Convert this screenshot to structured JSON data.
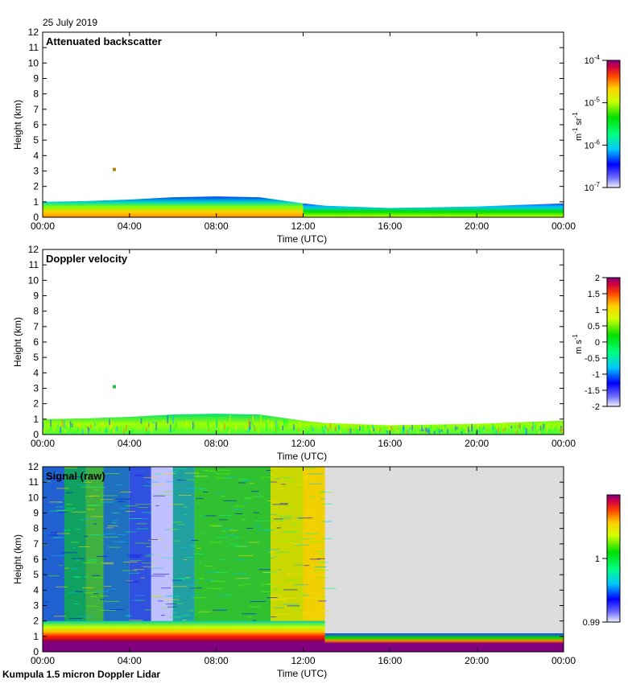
{
  "page": {
    "date": "25 July 2019",
    "footer": "Kumpula 1.5 micron Doppler Lidar"
  },
  "chart_data": [
    {
      "type": "heatmap",
      "title": "Attenuated backscatter",
      "xlabel": "Time (UTC)",
      "ylabel": "Height (km)",
      "xlim": [
        0,
        24
      ],
      "ylim": [
        0,
        12
      ],
      "x_ticks": [
        "00:00",
        "04:00",
        "08:00",
        "12:00",
        "16:00",
        "20:00",
        "00:00"
      ],
      "y_ticks": [
        "0",
        "1",
        "2",
        "3",
        "4",
        "5",
        "6",
        "7",
        "8",
        "9",
        "10",
        "11",
        "12"
      ],
      "colorbar": {
        "scale": "log",
        "ticks": [
          {
            "base": "10",
            "exp": "-4"
          },
          {
            "base": "10",
            "exp": "-5"
          },
          {
            "base": "10",
            "exp": "-6"
          },
          {
            "base": "10",
            "exp": "-7"
          }
        ],
        "units_base": "m",
        "units_exp": "-1",
        "units_base2": " sr",
        "units_exp2": "-1",
        "range": [
          1e-07,
          0.0001
        ]
      },
      "layer_top_km": [
        {
          "t": 0,
          "h": 1.0
        },
        {
          "t": 2,
          "h": 1.05
        },
        {
          "t": 4,
          "h": 1.15
        },
        {
          "t": 6,
          "h": 1.3
        },
        {
          "t": 8,
          "h": 1.35
        },
        {
          "t": 10,
          "h": 1.3
        },
        {
          "t": 12,
          "h": 0.9
        },
        {
          "t": 13,
          "h": 0.75
        },
        {
          "t": 16,
          "h": 0.6
        },
        {
          "t": 20,
          "h": 0.7
        },
        {
          "t": 24,
          "h": 0.9
        }
      ],
      "isolated_feature": {
        "t": 3.3,
        "h": 3.1
      }
    },
    {
      "type": "heatmap",
      "title": "Doppler velocity",
      "xlabel": "Time (UTC)",
      "ylabel": "Height (km)",
      "xlim": [
        0,
        24
      ],
      "ylim": [
        0,
        12
      ],
      "x_ticks": [
        "00:00",
        "04:00",
        "08:00",
        "12:00",
        "16:00",
        "20:00",
        "00:00"
      ],
      "y_ticks": [
        "0",
        "1",
        "2",
        "3",
        "4",
        "5",
        "6",
        "7",
        "8",
        "9",
        "10",
        "11",
        "12"
      ],
      "colorbar": {
        "scale": "linear",
        "ticks": [
          "2",
          "1.5",
          "1",
          "0.5",
          "0",
          "-0.5",
          "-1",
          "-1.5",
          "-2"
        ],
        "units_base": "m s",
        "units_exp": "-1",
        "range": [
          -2,
          2
        ]
      },
      "layer_top_km": [
        {
          "t": 0,
          "h": 1.0
        },
        {
          "t": 2,
          "h": 1.05
        },
        {
          "t": 4,
          "h": 1.15
        },
        {
          "t": 6,
          "h": 1.3
        },
        {
          "t": 8,
          "h": 1.35
        },
        {
          "t": 10,
          "h": 1.3
        },
        {
          "t": 12,
          "h": 0.9
        },
        {
          "t": 13,
          "h": 0.75
        },
        {
          "t": 16,
          "h": 0.6
        },
        {
          "t": 20,
          "h": 0.7
        },
        {
          "t": 24,
          "h": 0.9
        }
      ],
      "isolated_feature": {
        "t": 3.3,
        "h": 3.1
      }
    },
    {
      "type": "heatmap",
      "title": "Signal (raw)",
      "xlabel": "Time (UTC)",
      "ylabel": "Height (km)",
      "xlim": [
        0,
        24
      ],
      "ylim": [
        0,
        12
      ],
      "x_ticks": [
        "00:00",
        "04:00",
        "08:00",
        "12:00",
        "16:00",
        "20:00",
        "00:00"
      ],
      "y_ticks": [
        "0",
        "1",
        "2",
        "3",
        "4",
        "5",
        "6",
        "7",
        "8",
        "9",
        "10",
        "11",
        "12"
      ],
      "colorbar": {
        "scale": "linear",
        "ticks": [
          "1",
          "0.99"
        ],
        "range": [
          0.99,
          1.01
        ]
      },
      "data_end_time": 13,
      "no_data_color": "#dcdcdc"
    }
  ]
}
